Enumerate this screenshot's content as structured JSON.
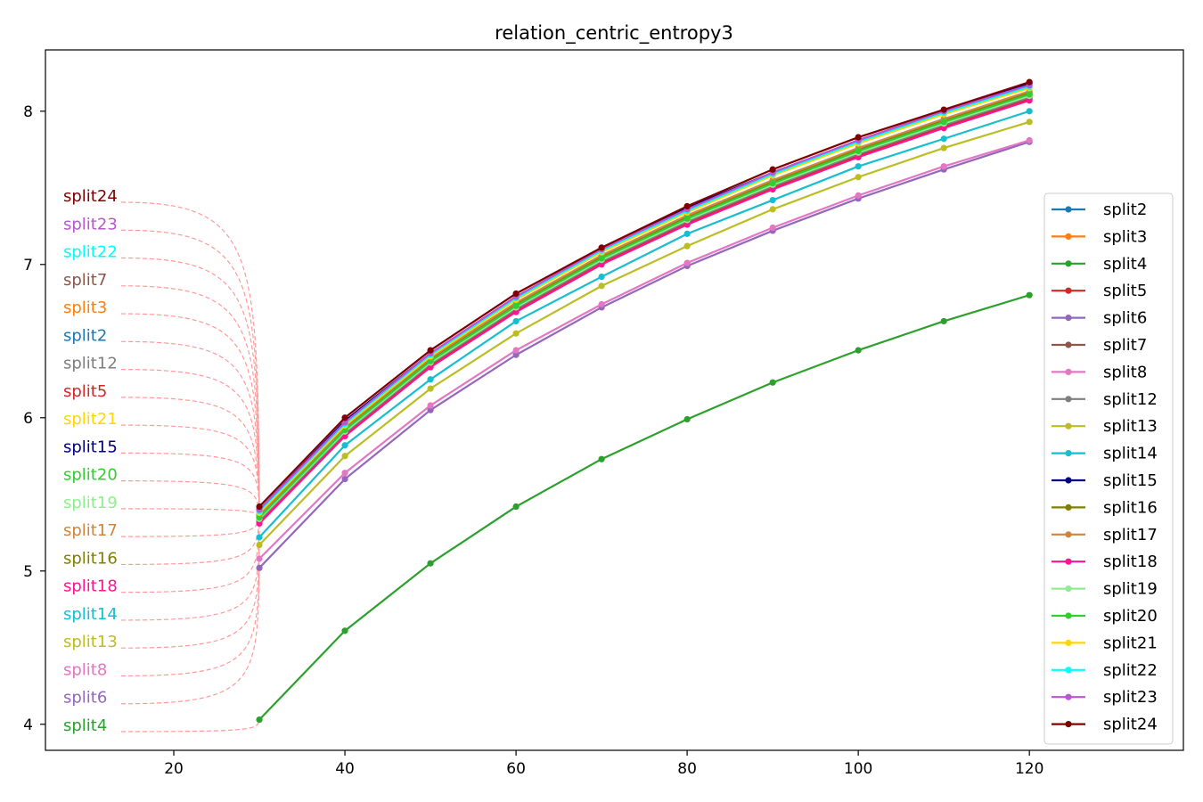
{
  "chart_data": {
    "type": "line",
    "title": "relation_centric_entropy3",
    "xlabel": "",
    "ylabel": "",
    "xlim": [
      5,
      138
    ],
    "ylim": [
      3.83,
      8.4
    ],
    "xticks": [
      20,
      40,
      60,
      80,
      100,
      120
    ],
    "yticks": [
      4,
      5,
      6,
      7,
      8
    ],
    "grid": false,
    "legend_position": "right",
    "x": [
      30,
      40,
      50,
      60,
      70,
      80,
      90,
      100,
      110,
      120
    ],
    "series": [
      {
        "name": "split2",
        "color": "#1f77b4",
        "values": [
          5.33,
          5.9,
          6.35,
          6.71,
          7.02,
          7.28,
          7.51,
          7.72,
          7.91,
          8.09
        ]
      },
      {
        "name": "split3",
        "color": "#ff7f0e",
        "values": [
          5.34,
          5.91,
          6.36,
          6.72,
          7.03,
          7.29,
          7.52,
          7.73,
          7.92,
          8.1
        ]
      },
      {
        "name": "split4",
        "color": "#2ca02c",
        "values": [
          4.03,
          4.61,
          5.05,
          5.42,
          5.73,
          5.99,
          6.23,
          6.44,
          6.63,
          6.8
        ]
      },
      {
        "name": "split5",
        "color": "#d62728",
        "values": [
          5.32,
          5.89,
          6.34,
          6.7,
          7.01,
          7.27,
          7.5,
          7.71,
          7.9,
          8.08
        ]
      },
      {
        "name": "split6",
        "color": "#9467bd",
        "values": [
          5.02,
          5.6,
          6.05,
          6.41,
          6.72,
          6.99,
          7.22,
          7.43,
          7.62,
          7.8
        ]
      },
      {
        "name": "split7",
        "color": "#8c564b",
        "values": [
          5.35,
          5.92,
          6.37,
          6.73,
          7.04,
          7.3,
          7.53,
          7.74,
          7.93,
          8.11
        ]
      },
      {
        "name": "split8",
        "color": "#e377c2",
        "values": [
          5.08,
          5.64,
          6.08,
          6.44,
          6.74,
          7.01,
          7.24,
          7.45,
          7.64,
          7.81
        ]
      },
      {
        "name": "split12",
        "color": "#7f7f7f",
        "values": [
          5.33,
          5.9,
          6.35,
          6.71,
          7.02,
          7.28,
          7.51,
          7.72,
          7.91,
          8.09
        ]
      },
      {
        "name": "split13",
        "color": "#bcbd22",
        "values": [
          5.17,
          5.75,
          6.19,
          6.55,
          6.86,
          7.12,
          7.36,
          7.57,
          7.76,
          7.93
        ]
      },
      {
        "name": "split14",
        "color": "#17becf",
        "values": [
          5.22,
          5.82,
          6.25,
          6.63,
          6.92,
          7.2,
          7.42,
          7.64,
          7.82,
          8.0
        ]
      },
      {
        "name": "split15",
        "color": "#000080",
        "values": [
          5.4,
          5.98,
          6.42,
          6.79,
          7.1,
          7.37,
          7.6,
          7.81,
          8.0,
          8.18
        ]
      },
      {
        "name": "split16",
        "color": "#808000",
        "values": [
          5.36,
          5.93,
          6.38,
          6.74,
          7.05,
          7.31,
          7.54,
          7.75,
          7.94,
          8.12
        ]
      },
      {
        "name": "split17",
        "color": "#cd853f",
        "values": [
          5.37,
          5.94,
          6.39,
          6.75,
          7.06,
          7.32,
          7.55,
          7.76,
          7.95,
          8.13
        ]
      },
      {
        "name": "split18",
        "color": "#ff1493",
        "values": [
          5.31,
          5.88,
          6.33,
          6.69,
          7.0,
          7.26,
          7.49,
          7.7,
          7.89,
          8.07
        ]
      },
      {
        "name": "split19",
        "color": "#90ee90",
        "values": [
          5.34,
          5.91,
          6.36,
          6.72,
          7.03,
          7.29,
          7.52,
          7.73,
          7.92,
          8.1
        ]
      },
      {
        "name": "split20",
        "color": "#32cd32",
        "values": [
          5.35,
          5.92,
          6.37,
          6.73,
          7.04,
          7.3,
          7.53,
          7.74,
          7.93,
          8.11
        ]
      },
      {
        "name": "split21",
        "color": "#ffd700",
        "values": [
          5.38,
          5.95,
          6.4,
          6.77,
          7.08,
          7.34,
          7.58,
          7.79,
          7.98,
          8.15
        ]
      },
      {
        "name": "split22",
        "color": "#00ffff",
        "values": [
          5.39,
          5.96,
          6.41,
          6.78,
          7.09,
          7.35,
          7.59,
          7.8,
          7.99,
          8.16
        ]
      },
      {
        "name": "split23",
        "color": "#ba55d3",
        "values": [
          5.4,
          5.97,
          6.42,
          6.79,
          7.1,
          7.36,
          7.6,
          7.81,
          8.0,
          8.17
        ]
      },
      {
        "name": "split24",
        "color": "#800000",
        "values": [
          5.42,
          6.0,
          6.44,
          6.81,
          7.11,
          7.38,
          7.62,
          7.83,
          8.01,
          8.19
        ]
      }
    ],
    "annotations": [
      {
        "label": "split24",
        "color": "#800000"
      },
      {
        "label": "split23",
        "color": "#ba55d3"
      },
      {
        "label": "split22",
        "color": "#00ffff"
      },
      {
        "label": "split7",
        "color": "#8c564b"
      },
      {
        "label": "split3",
        "color": "#ff7f0e"
      },
      {
        "label": "split2",
        "color": "#1f77b4"
      },
      {
        "label": "split12",
        "color": "#7f7f7f"
      },
      {
        "label": "split5",
        "color": "#d62728"
      },
      {
        "label": "split21",
        "color": "#ffd700"
      },
      {
        "label": "split15",
        "color": "#000080"
      },
      {
        "label": "split20",
        "color": "#32cd32"
      },
      {
        "label": "split19",
        "color": "#90ee90"
      },
      {
        "label": "split17",
        "color": "#cd853f"
      },
      {
        "label": "split16",
        "color": "#808000"
      },
      {
        "label": "split18",
        "color": "#ff1493"
      },
      {
        "label": "split14",
        "color": "#17becf"
      },
      {
        "label": "split13",
        "color": "#bcbd22"
      },
      {
        "label": "split8",
        "color": "#e377c2"
      },
      {
        "label": "split6",
        "color": "#9467bd"
      },
      {
        "label": "split4",
        "color": "#2ca02c"
      }
    ]
  }
}
